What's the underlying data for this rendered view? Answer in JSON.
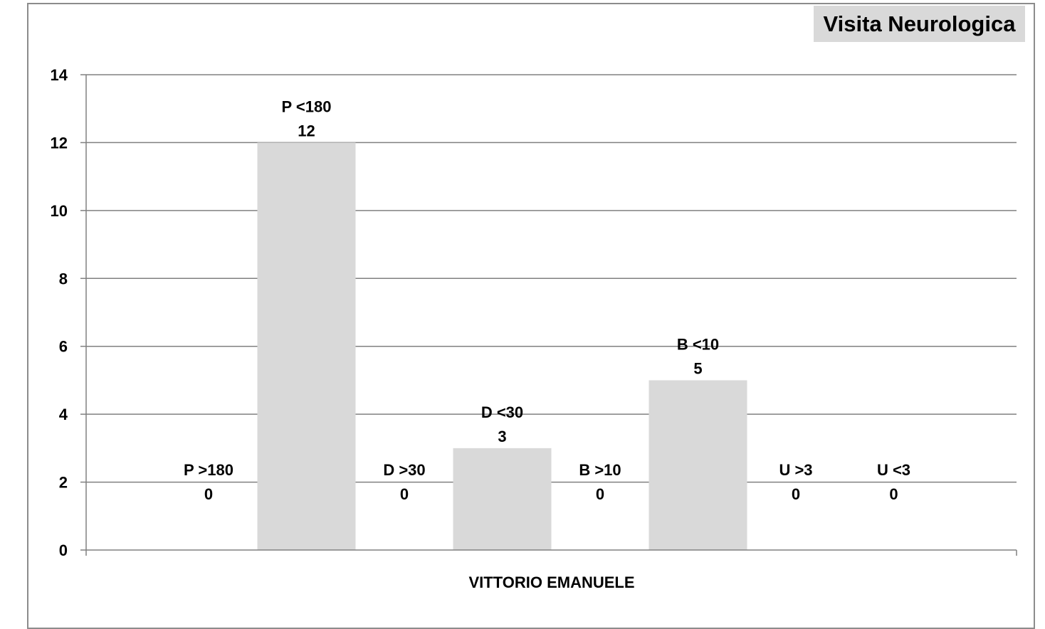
{
  "chart_data": {
    "type": "bar",
    "title": "Visita Neurologica",
    "xlabel": "VITTORIO EMANUELE",
    "ylabel": "",
    "ylim": [
      0,
      14
    ],
    "yticks": [
      "0",
      "2",
      "4",
      "6",
      "8",
      "10",
      "12",
      "14"
    ],
    "grid": true,
    "categories": [
      "P  >180",
      "P  <180",
      "D  >30",
      "D  <30",
      "B  >10",
      "B  <10",
      "U  >3",
      "U  <3"
    ],
    "values": [
      0,
      12,
      0,
      3,
      0,
      5,
      0,
      0
    ],
    "data_labels": [
      "0",
      "12",
      "0",
      "3",
      "0",
      "5",
      "0",
      "0"
    ],
    "bar_color": "#d9d9d9",
    "grid_color": "#808080"
  }
}
